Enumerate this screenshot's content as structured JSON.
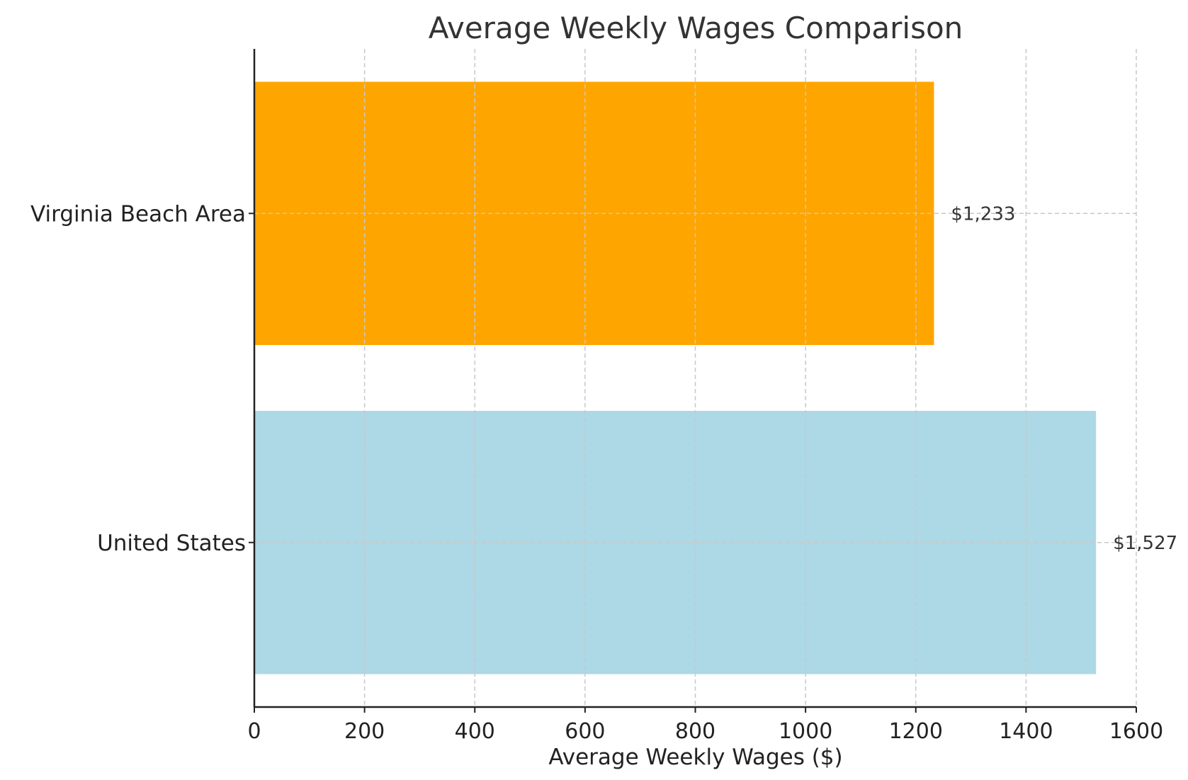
{
  "chart_data": {
    "type": "bar",
    "orientation": "horizontal",
    "title": "Average Weekly Wages Comparison",
    "xlabel": "Average Weekly Wages ($)",
    "ylabel": "",
    "categories": [
      "United States",
      "Virginia Beach Area"
    ],
    "values": [
      1527,
      1233
    ],
    "value_labels": [
      "$1,527",
      "$1,233"
    ],
    "colors": [
      "#add8e6",
      "#ffa500"
    ],
    "xlim": [
      0,
      1600
    ],
    "xticks": [
      0,
      200,
      400,
      600,
      800,
      1000,
      1200,
      1400,
      1600
    ],
    "grid": true,
    "legend": "none"
  }
}
